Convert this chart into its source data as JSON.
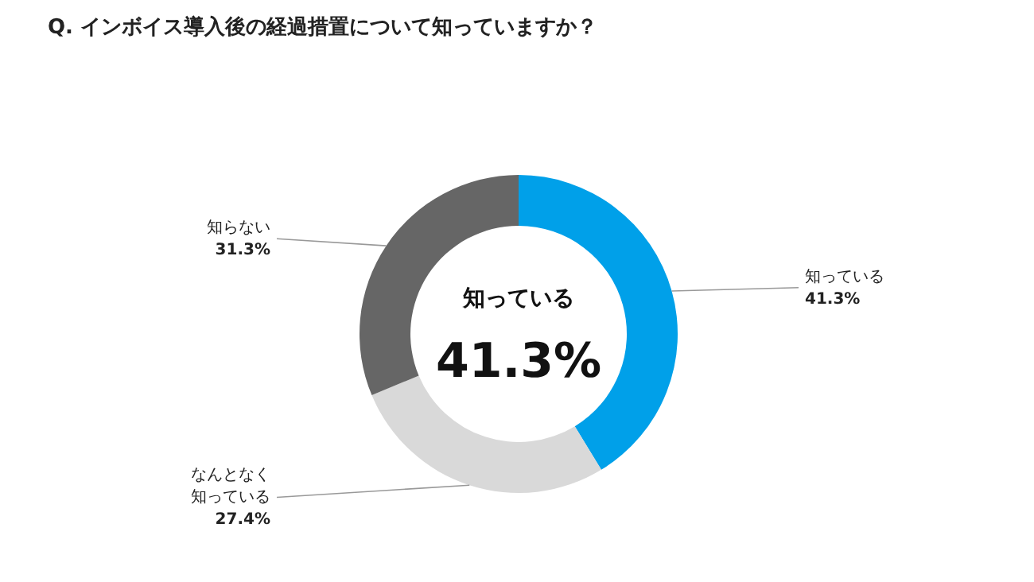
{
  "chart_data": {
    "type": "donut",
    "title": "Q. インボイス導入後の経過措置について知っていますか？",
    "categories": [
      "知っている",
      "なんとなく知っている",
      "知らない"
    ],
    "values": [
      41.3,
      27.4,
      31.3
    ],
    "colors": [
      "#00a0e9",
      "#d9d9d9",
      "#666666"
    ],
    "value_labels": [
      "41.3%",
      "27.4%",
      "31.3%"
    ],
    "annotations": [
      "知っている",
      "41.3%"
    ],
    "legend": false
  }
}
